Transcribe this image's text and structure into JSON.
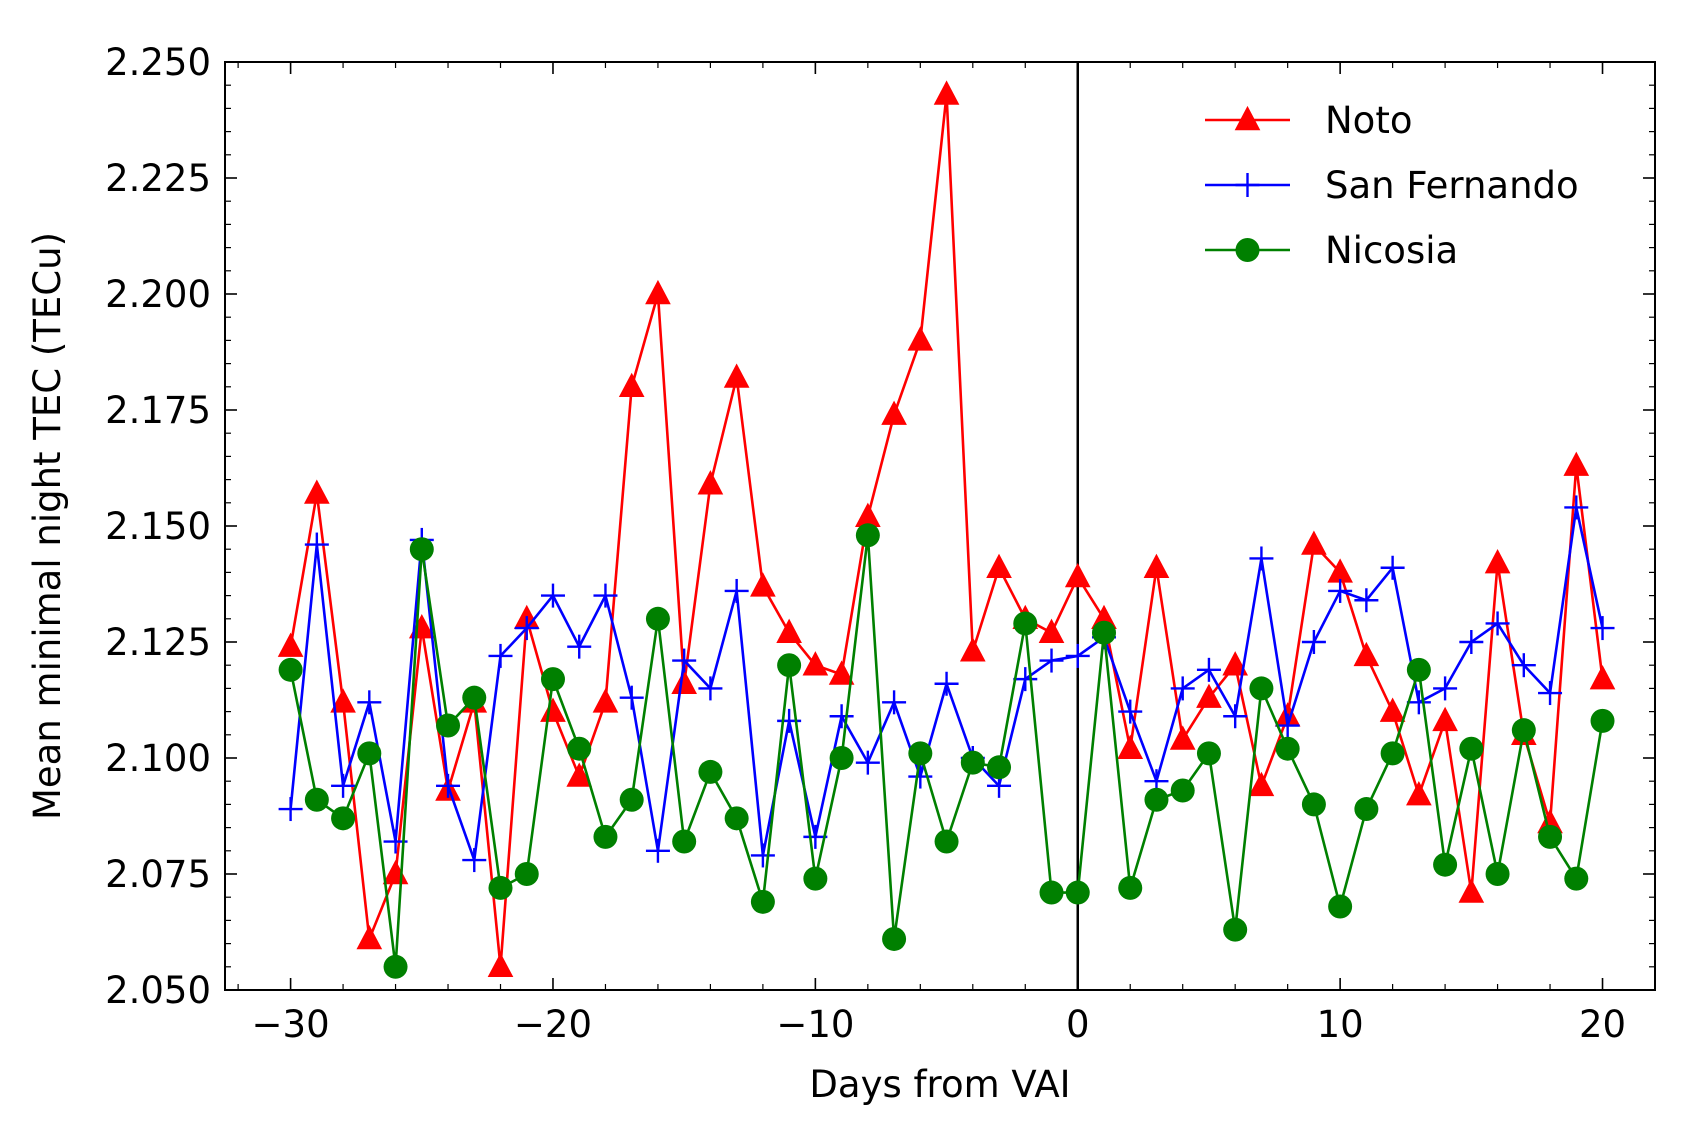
{
  "chart_data": {
    "type": "line",
    "xlabel": "Days from VAI",
    "ylabel": "Mean minimal night TEC (TECu)",
    "xlim": [
      -32.5,
      22
    ],
    "ylim": [
      2.05,
      2.25
    ],
    "xticks": [
      -30,
      -20,
      -10,
      0,
      10,
      20
    ],
    "xtick_labels": [
      "−30",
      "−20",
      "−10",
      "0",
      "10",
      "20"
    ],
    "yticks": [
      2.05,
      2.075,
      2.1,
      2.125,
      2.15,
      2.175,
      2.2,
      2.225,
      2.25
    ],
    "ytick_labels": [
      "2.050",
      "2.075",
      "2.100",
      "2.125",
      "2.150",
      "2.175",
      "2.200",
      "2.225",
      "2.250"
    ],
    "vline_x": 0,
    "grid": false,
    "legend_position": "top-right",
    "x": [
      -30,
      -29,
      -28,
      -27,
      -26,
      -25,
      -24,
      -23,
      -22,
      -21,
      -20,
      -19,
      -18,
      -17,
      -16,
      -15,
      -14,
      -13,
      -12,
      -11,
      -10,
      -9,
      -8,
      -7,
      -6,
      -5,
      -4,
      -3,
      -2,
      -1,
      0,
      1,
      2,
      3,
      4,
      5,
      6,
      7,
      8,
      9,
      10,
      11,
      12,
      13,
      14,
      15,
      16,
      17,
      18,
      19,
      20
    ],
    "series": [
      {
        "name": "Noto",
        "color": "#ff0000",
        "marker": "triangle",
        "values": [
          2.124,
          2.157,
          2.112,
          2.061,
          2.075,
          2.128,
          2.093,
          2.112,
          2.055,
          2.13,
          2.11,
          2.096,
          2.112,
          2.18,
          2.2,
          2.116,
          2.159,
          2.182,
          2.137,
          2.127,
          2.12,
          2.118,
          2.152,
          2.174,
          2.19,
          2.243,
          2.123,
          2.141,
          2.13,
          2.127,
          2.139,
          2.13,
          2.102,
          2.141,
          2.104,
          2.113,
          2.12,
          2.094,
          2.109,
          2.146,
          2.14,
          2.122,
          2.11,
          2.092,
          2.108,
          2.071,
          2.142,
          2.105,
          2.086,
          2.163,
          2.117
        ]
      },
      {
        "name": "San Fernando",
        "color": "#0000ff",
        "marker": "plus",
        "values": [
          2.089,
          2.146,
          2.094,
          2.112,
          2.082,
          2.147,
          2.094,
          2.078,
          2.122,
          2.128,
          2.135,
          2.124,
          2.135,
          2.113,
          2.08,
          2.121,
          2.115,
          2.136,
          2.079,
          2.108,
          2.083,
          2.109,
          2.099,
          2.112,
          2.096,
          2.116,
          2.1,
          2.094,
          2.117,
          2.121,
          2.122,
          2.126,
          2.11,
          2.095,
          2.115,
          2.119,
          2.109,
          2.143,
          2.107,
          2.125,
          2.136,
          2.134,
          2.141,
          2.112,
          2.115,
          2.125,
          2.129,
          2.12,
          2.114,
          2.154,
          2.128
        ]
      },
      {
        "name": "Nicosia",
        "color": "#008000",
        "marker": "circle",
        "values": [
          2.119,
          2.091,
          2.087,
          2.101,
          2.055,
          2.145,
          2.107,
          2.113,
          2.072,
          2.075,
          2.117,
          2.102,
          2.083,
          2.091,
          2.13,
          2.082,
          2.097,
          2.087,
          2.069,
          2.12,
          2.074,
          2.1,
          2.148,
          2.061,
          2.101,
          2.082,
          2.099,
          2.098,
          2.129,
          2.071,
          2.071,
          2.127,
          2.072,
          2.091,
          2.093,
          2.101,
          2.063,
          2.115,
          2.102,
          2.09,
          2.068,
          2.089,
          2.101,
          2.119,
          2.077,
          2.102,
          2.075,
          2.106,
          2.083,
          2.074,
          2.108
        ]
      }
    ]
  }
}
